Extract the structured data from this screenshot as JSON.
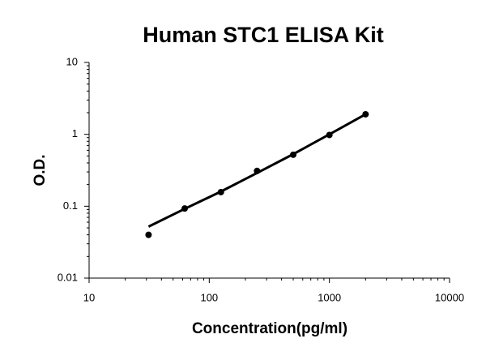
{
  "chart_data": {
    "type": "scatter",
    "title": "Human STC1 ELISA Kit",
    "x_label": "Concentration(pg/ml)",
    "y_label": "O.D.",
    "log_x": true,
    "log_y": true,
    "xlim": [
      10,
      10000
    ],
    "xticks": [
      10,
      100,
      1000,
      10000
    ],
    "ylim": [
      0.01,
      10
    ],
    "yticks": [
      0.01,
      0.1,
      1,
      10
    ],
    "x": [
      31.25,
      62.5,
      125,
      250,
      500,
      1000,
      2000
    ],
    "series": [
      {
        "mode": "markers",
        "color": "#000000",
        "values": [
          0.04,
          0.093,
          0.157,
          0.31,
          0.52,
          0.98,
          1.9
        ]
      },
      {
        "mode": "line",
        "color": "#000000",
        "values": [
          0.052,
          0.092,
          0.16,
          0.29,
          0.53,
          1.0,
          1.9
        ]
      }
    ]
  }
}
